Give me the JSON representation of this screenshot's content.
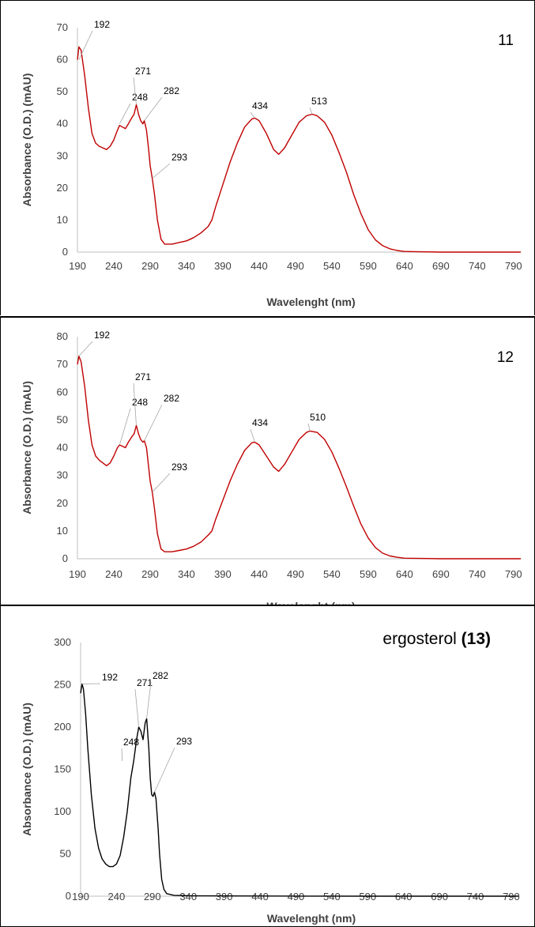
{
  "chart_data": [
    {
      "type": "line",
      "label_text": "11",
      "label_bold": "",
      "xlabel": "Wavelenght (nm)",
      "ylabel": "Absorbance (O.D.) (mAU)",
      "xlim": [
        190,
        800
      ],
      "ylim": [
        0,
        70
      ],
      "x_ticks": [
        190,
        240,
        290,
        340,
        390,
        440,
        490,
        540,
        590,
        640,
        690,
        740,
        790
      ],
      "y_ticks": [
        0,
        10,
        20,
        30,
        40,
        50,
        60,
        70
      ],
      "color": "#c00000",
      "series": [
        {
          "x": [
            190,
            192,
            195,
            200,
            205,
            210,
            215,
            220,
            230,
            235,
            240,
            245,
            248,
            252,
            256,
            260,
            265,
            268,
            271,
            274,
            277,
            280,
            282,
            285,
            288,
            290,
            293,
            296,
            300,
            305,
            310,
            320,
            330,
            340,
            350,
            360,
            370,
            375,
            380,
            390,
            400,
            410,
            420,
            430,
            434,
            440,
            450,
            460,
            467,
            475,
            485,
            495,
            505,
            513,
            520,
            530,
            540,
            550,
            560,
            570,
            580,
            590,
            600,
            610,
            620,
            630,
            640,
            660,
            690,
            740,
            800
          ],
          "y": [
            60,
            64,
            63,
            55,
            45,
            37,
            34,
            33,
            32,
            33,
            35,
            38,
            39.5,
            39,
            38.5,
            40,
            42,
            43,
            46,
            43,
            41,
            40,
            41,
            38,
            32,
            27,
            23,
            18,
            10,
            4,
            2.5,
            2.5,
            3,
            3.5,
            4.5,
            6,
            8,
            10,
            14,
            21,
            28,
            34,
            39,
            41.5,
            41.8,
            41,
            37,
            32,
            30.5,
            32.5,
            36.5,
            40.5,
            42.5,
            43,
            42.5,
            40.5,
            36.5,
            31,
            25,
            18,
            12,
            7,
            3.8,
            2,
            1,
            0.5,
            0.2,
            0.1,
            0,
            0,
            0
          ]
        }
      ],
      "annotations": [
        "192",
        "248",
        "271",
        "282",
        "293",
        "434",
        "513"
      ]
    },
    {
      "type": "line",
      "label_text": "12",
      "label_bold": "",
      "xlabel": "Wavelenght (nm)",
      "ylabel": "Absorbance (O.D.) (mAU)",
      "xlim": [
        190,
        800
      ],
      "ylim": [
        0,
        80
      ],
      "x_ticks": [
        190,
        240,
        290,
        340,
        390,
        440,
        490,
        540,
        590,
        640,
        690,
        740,
        790
      ],
      "y_ticks": [
        0,
        10,
        20,
        30,
        40,
        50,
        60,
        70,
        80
      ],
      "color": "#c00000",
      "series": [
        {
          "x": [
            190,
            192,
            195,
            200,
            205,
            210,
            215,
            220,
            230,
            235,
            240,
            245,
            248,
            252,
            256,
            260,
            265,
            268,
            271,
            274,
            277,
            280,
            282,
            285,
            288,
            290,
            293,
            296,
            300,
            305,
            310,
            320,
            330,
            340,
            350,
            360,
            370,
            375,
            380,
            390,
            400,
            410,
            420,
            430,
            434,
            440,
            450,
            460,
            467,
            475,
            485,
            495,
            505,
            510,
            520,
            530,
            540,
            550,
            560,
            570,
            580,
            590,
            600,
            610,
            620,
            630,
            640,
            660,
            690,
            740,
            800
          ],
          "y": [
            70,
            73,
            71,
            62,
            50,
            41,
            37,
            35.5,
            33.5,
            34.5,
            37,
            40,
            41,
            40.5,
            40,
            42,
            44,
            45,
            48,
            45,
            43,
            42,
            42.5,
            40,
            33,
            28,
            24,
            18,
            9,
            3.5,
            2.5,
            2.5,
            3,
            3.5,
            4.5,
            6,
            8.5,
            10,
            14,
            21,
            28,
            34,
            39,
            41.8,
            42,
            41,
            37,
            33,
            31.5,
            34,
            38.5,
            43,
            45.5,
            46,
            45.5,
            43,
            38.5,
            32.5,
            26,
            19,
            12.5,
            7.5,
            4,
            2,
            1,
            0.5,
            0.2,
            0.1,
            0,
            0,
            0
          ]
        }
      ],
      "annotations": [
        "192",
        "248",
        "271",
        "282",
        "293",
        "434",
        "510"
      ]
    },
    {
      "type": "line",
      "label_text": "ergosterol ",
      "label_bold": "(13)",
      "xlabel": "Wavelenght (nm)",
      "ylabel": "Absorbance (O.D.) (mAU)",
      "xlim": [
        190,
        800
      ],
      "ylim": [
        0,
        300
      ],
      "x_ticks": [
        190,
        240,
        290,
        340,
        390,
        440,
        490,
        540,
        590,
        640,
        690,
        740,
        790
      ],
      "y_ticks": [
        0,
        50,
        100,
        150,
        200,
        250,
        300
      ],
      "color": "#000000",
      "series": [
        {
          "x": [
            190,
            192,
            194,
            197,
            200,
            205,
            210,
            215,
            220,
            225,
            230,
            235,
            240,
            245,
            250,
            255,
            260,
            264,
            268,
            271,
            274,
            277,
            280,
            282,
            285,
            287,
            289,
            291,
            293,
            295,
            298,
            300,
            303,
            306,
            310,
            320,
            340,
            400,
            500,
            600,
            700,
            800
          ],
          "y": [
            240,
            251,
            245,
            215,
            175,
            120,
            80,
            57,
            44,
            38,
            35,
            35,
            38,
            48,
            70,
            100,
            140,
            160,
            185,
            200,
            195,
            185,
            205,
            210,
            175,
            140,
            120,
            118,
            123,
            115,
            80,
            50,
            20,
            8,
            3,
            1,
            0.5,
            0.3,
            0.1,
            0,
            0,
            0
          ]
        }
      ],
      "annotations": [
        "192",
        "248",
        "271",
        "282",
        "293"
      ]
    }
  ]
}
